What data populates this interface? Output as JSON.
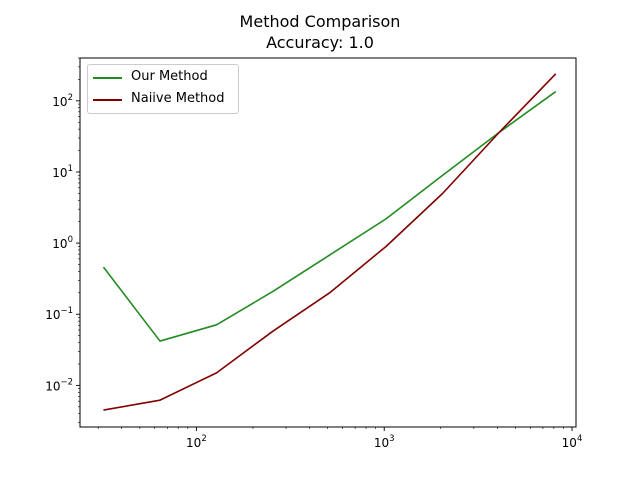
{
  "chart_data": {
    "type": "line",
    "title": "Method Comparison",
    "subtitle": "Accuracy: 1.0",
    "x_scale": "log",
    "y_scale": "log",
    "xlim": [
      24,
      10500
    ],
    "ylim": [
      0.0026,
      400
    ],
    "x_ticks": [
      {
        "value": 100,
        "base": "10",
        "exp": "2"
      },
      {
        "value": 1000,
        "base": "10",
        "exp": "3"
      },
      {
        "value": 10000,
        "base": "10",
        "exp": "4"
      }
    ],
    "y_ticks": [
      {
        "value": 0.01,
        "base": "10",
        "exp": "−2"
      },
      {
        "value": 0.1,
        "base": "10",
        "exp": "−1"
      },
      {
        "value": 1,
        "base": "10",
        "exp": "0"
      },
      {
        "value": 10,
        "base": "10",
        "exp": "1"
      },
      {
        "value": 100,
        "base": "10",
        "exp": "2"
      }
    ],
    "grid": false,
    "legend_position": "top-left",
    "series": [
      {
        "name": "Our Method",
        "color": "#228b22",
        "x": [
          32,
          64,
          128,
          256,
          512,
          1024,
          2048,
          4096,
          8192
        ],
        "y": [
          0.46,
          0.042,
          0.071,
          0.21,
          0.68,
          2.2,
          9.0,
          36,
          135
        ]
      },
      {
        "name": "Naiive Method",
        "color": "#800000",
        "x": [
          32,
          64,
          128,
          256,
          512,
          1024,
          2048,
          4096,
          8192
        ],
        "y": [
          0.0045,
          0.0062,
          0.015,
          0.058,
          0.2,
          0.9,
          5.0,
          36,
          240
        ]
      }
    ]
  }
}
